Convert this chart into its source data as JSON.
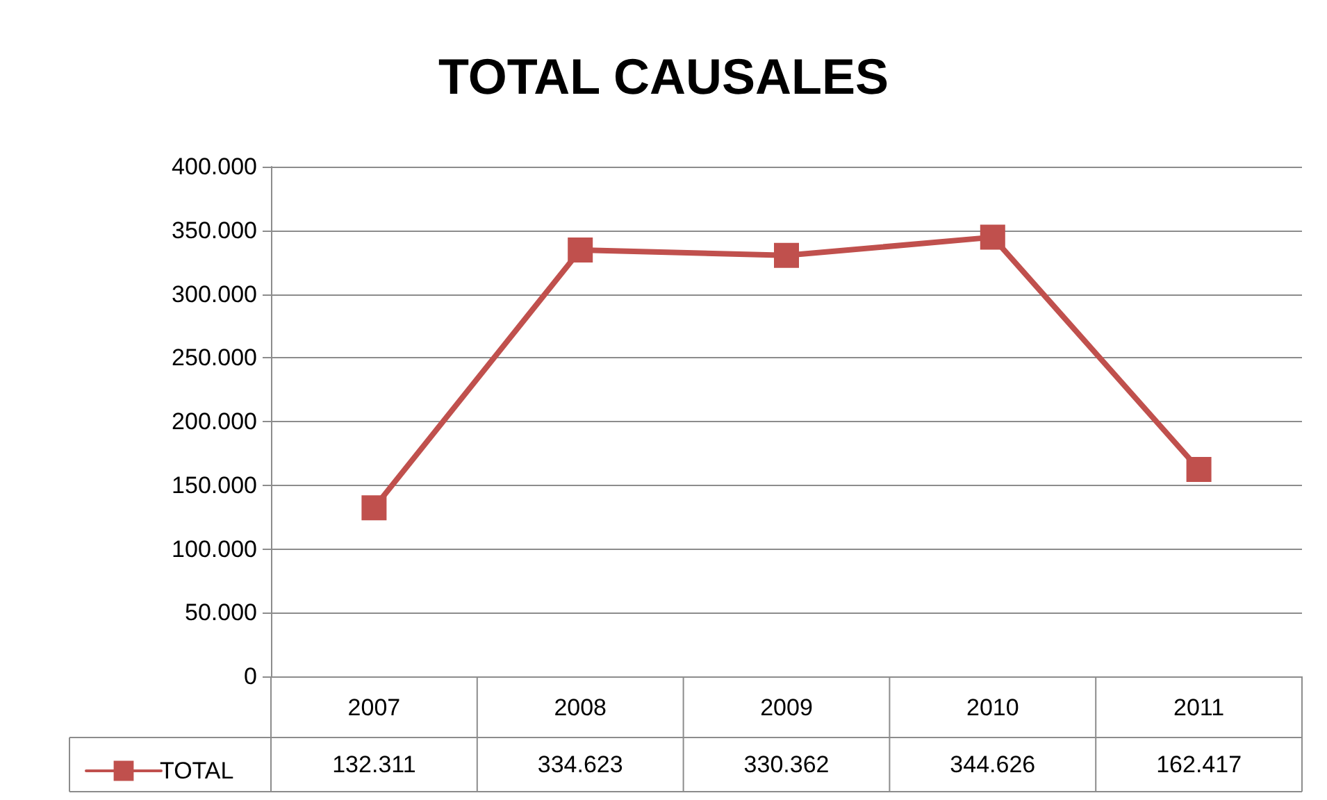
{
  "chart_data": {
    "type": "line",
    "title": "TOTAL CAUSALES",
    "categories": [
      "2007",
      "2008",
      "2009",
      "2010",
      "2011"
    ],
    "series": [
      {
        "name": "TOTAL",
        "color": "#c0504d",
        "values": [
          132311,
          334623,
          330362,
          344626,
          162417
        ],
        "value_labels": [
          "132.311",
          "334.623",
          "330.362",
          "344.626",
          "162.417"
        ]
      }
    ],
    "ylim": [
      0,
      400000
    ],
    "yticks": [
      {
        "value": 0,
        "label": "0"
      },
      {
        "value": 50000,
        "label": "50.000"
      },
      {
        "value": 100000,
        "label": "100.000"
      },
      {
        "value": 150000,
        "label": "150.000"
      },
      {
        "value": 200000,
        "label": "200.000"
      },
      {
        "value": 250000,
        "label": "250.000"
      },
      {
        "value": 300000,
        "label": "300.000"
      },
      {
        "value": 350000,
        "label": "350.000"
      },
      {
        "value": 400000,
        "label": "400.000"
      }
    ],
    "grid": "y",
    "legend": "bottom left",
    "marker": "square",
    "line_style": "solid"
  }
}
